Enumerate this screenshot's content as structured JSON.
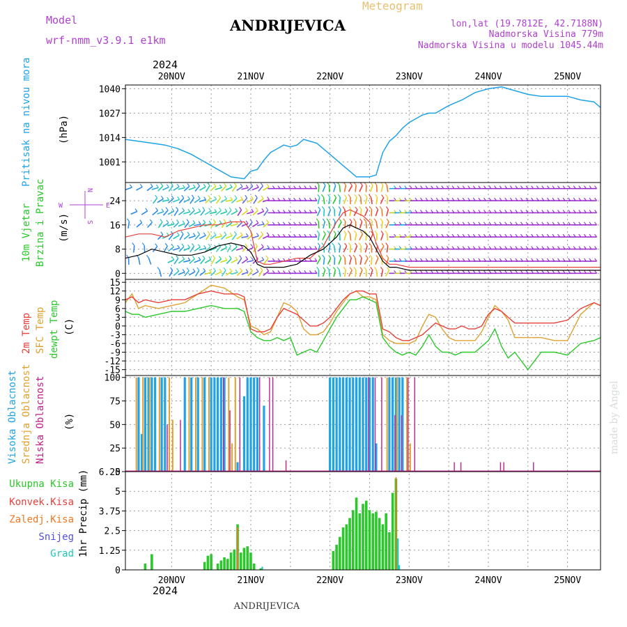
{
  "header": {
    "model_label": "Model",
    "model_name": "wrf-nmm_v3.9.1 e1km",
    "title": "ANDRIJEVICA",
    "meteogram_label": "Meteogram",
    "lonlat": "lon,lat (19.7812E, 42.7188N)",
    "elevation": "Nadmorska Visina 779m",
    "model_elevation": "Nadmorska Visina u modelu 1045.44m",
    "footer_title": "ANDRIJEVICA",
    "watermark": "made by Angel",
    "year": "2024"
  },
  "colors": {
    "pressure": "#1fa3e8",
    "temp2m": "#e8403a",
    "sfctemp": "#e0a030",
    "dewpoint": "#2ac82a",
    "high_cloud": "#1fa3e8",
    "mid_cloud": "#e0a030",
    "low_cloud": "#c0208a",
    "total_precip": "#2ac82a",
    "conv_precip": "#e8403a",
    "frozen_precip": "#f07820",
    "snow": "#5050e0",
    "hail": "#20c8b8",
    "title_purple": "#b040d0"
  },
  "panels": {
    "pressure": {
      "label_line1": "Pritisak na nivou mora",
      "unit": "(hPa)"
    },
    "wind": {
      "label_line1": "10m Vjetar",
      "label_line2": "Brzina i Pravac",
      "unit": "(m/s)",
      "compass_w": "W",
      "compass_e": "E",
      "compass_n": "N",
      "compass_s": "S"
    },
    "temp": {
      "label_line1": "2m Temp",
      "label_line2": "SFC Temp",
      "label_line3": "dewpt Temp",
      "unit": "(C)"
    },
    "cloud": {
      "label_line1": "Visoka Oblacnost",
      "label_line2": "Srednja Oblacnost",
      "label_line3": "Niska Oblacnost",
      "unit": "(%)"
    },
    "precip": {
      "legend": [
        "Ukupna Kisa",
        "Konvek.Kisa",
        "Zaledj.Kisa",
        "Snijeg",
        "Grad"
      ],
      "unit": "1hr Precip (mm)"
    }
  },
  "chart_data": {
    "type": "line",
    "x_day_labels": [
      "20NOV",
      "21NOV",
      "22NOV",
      "23NOV",
      "24NOV",
      "25NOV"
    ],
    "x_range_hours": [
      -14,
      130
    ],
    "pressure": {
      "yticks": [
        "1001",
        "1014",
        "1027",
        "1040"
      ],
      "ylim": [
        990,
        1042
      ],
      "x": [
        -14,
        -10,
        -6,
        -2,
        2,
        6,
        10,
        14,
        18,
        22,
        24,
        26,
        28,
        30,
        32,
        34,
        36,
        38,
        40,
        44,
        48,
        52,
        54,
        56,
        58,
        60,
        62,
        64,
        66,
        68,
        70,
        72,
        74,
        76,
        78,
        80,
        84,
        88,
        92,
        96,
        100,
        104,
        108,
        112,
        116,
        120,
        124,
        128,
        130
      ],
      "values": [
        1013,
        1012,
        1011,
        1010,
        1008,
        1005,
        1001,
        997,
        993,
        992,
        996,
        997,
        1002,
        1006,
        1008,
        1010,
        1009,
        1010,
        1013,
        1011,
        1005,
        999,
        996,
        993,
        993,
        993,
        994,
        1006,
        1012,
        1015,
        1019,
        1022,
        1024,
        1026,
        1027,
        1027,
        1031,
        1034,
        1038,
        1040,
        1041,
        1039,
        1037,
        1036,
        1036,
        1036,
        1034,
        1033,
        1030
      ]
    },
    "wind": {
      "yticks": [
        "0",
        "8",
        "16",
        "24"
      ],
      "ylim": [
        -2,
        30
      ],
      "x": [
        -14,
        -10,
        -6,
        -2,
        2,
        6,
        10,
        14,
        18,
        22,
        24,
        26,
        28,
        30,
        34,
        38,
        42,
        46,
        50,
        52,
        54,
        56,
        58,
        60,
        62,
        64,
        66,
        68,
        72,
        76,
        80,
        84,
        88,
        92,
        96,
        100,
        104,
        108,
        112,
        116,
        120,
        124,
        128,
        130
      ],
      "speed": [
        5,
        6,
        8,
        7,
        6,
        6,
        7,
        9,
        10,
        9,
        7,
        3,
        2,
        2,
        2,
        3,
        6,
        8,
        12,
        15,
        16,
        15,
        14,
        12,
        8,
        4,
        2,
        2,
        1,
        1,
        1,
        1,
        1,
        1,
        1,
        1,
        1,
        1,
        1,
        1,
        1,
        1,
        1,
        1
      ],
      "gust": [
        12,
        13,
        13,
        12,
        14,
        15,
        16,
        16,
        17,
        17,
        14,
        4,
        3,
        3,
        4,
        5,
        5,
        9,
        17,
        20,
        21,
        20,
        19,
        17,
        10,
        5,
        3,
        3,
        2,
        2,
        2,
        2,
        2,
        2,
        2,
        2,
        2,
        2,
        2,
        2,
        2,
        2,
        2,
        2
      ]
    },
    "temperature": {
      "yticks": [
        "-15",
        "-12",
        "-9",
        "-6",
        "-3",
        "0",
        "3",
        "6",
        "9",
        "12",
        "15"
      ],
      "ylim": [
        -17,
        16
      ],
      "x": [
        -14,
        -12,
        -10,
        -8,
        -4,
        0,
        4,
        8,
        12,
        16,
        20,
        22,
        24,
        26,
        28,
        30,
        32,
        34,
        36,
        38,
        40,
        42,
        44,
        46,
        48,
        50,
        52,
        54,
        56,
        58,
        60,
        62,
        64,
        66,
        68,
        70,
        72,
        74,
        76,
        78,
        80,
        82,
        84,
        86,
        88,
        90,
        92,
        94,
        96,
        98,
        100,
        102,
        104,
        108,
        112,
        116,
        120,
        124,
        128,
        130
      ],
      "t2m": [
        9,
        10,
        8,
        9,
        8,
        9,
        9,
        11,
        12,
        11,
        11,
        10,
        -1,
        -2,
        -2,
        -1,
        3,
        6,
        5,
        4,
        2,
        0,
        0,
        1,
        3,
        6,
        9,
        11,
        12,
        12,
        11,
        11,
        -1,
        -2,
        -4,
        -5,
        -5,
        -4,
        -3,
        -1,
        1,
        0,
        -1,
        -1,
        0,
        -1,
        -1,
        0,
        4,
        6,
        5,
        3,
        1,
        1,
        1,
        1,
        2,
        6,
        8,
        7
      ],
      "sfc": [
        8,
        11,
        6,
        7,
        6,
        7,
        8,
        11,
        14,
        13,
        10,
        9,
        0,
        -1,
        -3,
        -2,
        3,
        8,
        7,
        5,
        -1,
        -3,
        -3,
        -2,
        1,
        5,
        8,
        11,
        12,
        10,
        10,
        9,
        -3,
        -5,
        -6,
        -6,
        -6,
        -5,
        0,
        4,
        3,
        -1,
        -4,
        -5,
        -5,
        -5,
        -5,
        -2,
        3,
        7,
        5,
        2,
        -4,
        -4,
        -4,
        -5,
        -5,
        4,
        8,
        7
      ],
      "dewpt": [
        5,
        4,
        4,
        3,
        4,
        5,
        5,
        6,
        7,
        6,
        6,
        5,
        -2,
        -4,
        -5,
        -5,
        -4,
        -5,
        -4,
        -10,
        -9,
        -8,
        -9,
        -5,
        -1,
        3,
        6,
        9,
        9,
        10,
        9,
        8,
        -4,
        -7,
        -9,
        -10,
        -9,
        -10,
        -7,
        -3,
        -7,
        -9,
        -9,
        -10,
        -9,
        -9,
        -9,
        -7,
        -5,
        -1,
        -7,
        -11,
        -9,
        -15,
        -9,
        -9,
        -10,
        -6,
        -5,
        -4
      ]
    },
    "cloud": {
      "yticks": [
        "0",
        "25",
        "50",
        "75",
        "100"
      ],
      "ylim": [
        0,
        102
      ],
      "high": [
        {
          "x": -10,
          "v": 100
        },
        {
          "x": -9,
          "v": 40
        },
        {
          "x": -8,
          "v": 100
        },
        {
          "x": -7,
          "v": 100
        },
        {
          "x": -6,
          "v": 100
        },
        {
          "x": -5,
          "v": 100
        },
        {
          "x": -3,
          "v": 100
        },
        {
          "x": -2,
          "v": 100
        },
        {
          "x": 4,
          "v": 100
        },
        {
          "x": 6,
          "v": 100
        },
        {
          "x": 8,
          "v": 100
        },
        {
          "x": 10,
          "v": 100
        },
        {
          "x": 12,
          "v": 100
        },
        {
          "x": 13,
          "v": 100
        },
        {
          "x": 14,
          "v": 100
        },
        {
          "x": 15,
          "v": 100
        },
        {
          "x": 16,
          "v": 100
        },
        {
          "x": 20,
          "v": 10
        },
        {
          "x": 22,
          "v": 80
        },
        {
          "x": 23,
          "v": 100
        },
        {
          "x": 24,
          "v": 100
        },
        {
          "x": 25,
          "v": 100
        },
        {
          "x": 26,
          "v": 100
        },
        {
          "x": 28,
          "v": 70
        },
        {
          "x": 48,
          "v": 100
        },
        {
          "x": 49,
          "v": 100
        },
        {
          "x": 50,
          "v": 100
        },
        {
          "x": 51,
          "v": 100
        },
        {
          "x": 52,
          "v": 100
        },
        {
          "x": 53,
          "v": 100
        },
        {
          "x": 54,
          "v": 100
        },
        {
          "x": 55,
          "v": 100
        },
        {
          "x": 56,
          "v": 100
        },
        {
          "x": 57,
          "v": 100
        },
        {
          "x": 58,
          "v": 100
        },
        {
          "x": 59,
          "v": 100
        },
        {
          "x": 60,
          "v": 100
        },
        {
          "x": 61,
          "v": 100
        },
        {
          "x": 62,
          "v": 30
        },
        {
          "x": 66,
          "v": 100
        },
        {
          "x": 67,
          "v": 100
        },
        {
          "x": 68,
          "v": 100
        },
        {
          "x": 69,
          "v": 100
        },
        {
          "x": 70,
          "v": 100
        }
      ],
      "mid": [
        {
          "x": -11,
          "v": 100
        },
        {
          "x": -9,
          "v": 100
        },
        {
          "x": -7,
          "v": 100
        },
        {
          "x": -4,
          "v": 100
        },
        {
          "x": -1,
          "v": 100
        },
        {
          "x": 0,
          "v": 55
        },
        {
          "x": 5,
          "v": 100
        },
        {
          "x": 7,
          "v": 100
        },
        {
          "x": 9,
          "v": 100
        },
        {
          "x": 11,
          "v": 100
        },
        {
          "x": 17,
          "v": 100
        },
        {
          "x": 18,
          "v": 30
        },
        {
          "x": 19,
          "v": 100
        },
        {
          "x": 65,
          "v": 100
        },
        {
          "x": 68,
          "v": 100
        },
        {
          "x": 71,
          "v": 100
        },
        {
          "x": 72,
          "v": 30
        }
      ],
      "low": [
        {
          "x": -1,
          "v": 50
        },
        {
          "x": 3,
          "v": 55
        },
        {
          "x": 16,
          "v": 100
        },
        {
          "x": 18,
          "v": 65
        },
        {
          "x": 21,
          "v": 100
        },
        {
          "x": 27,
          "v": 100
        },
        {
          "x": 30,
          "v": 100
        },
        {
          "x": 31,
          "v": 100
        },
        {
          "x": 35,
          "v": 12
        },
        {
          "x": 60,
          "v": 100
        },
        {
          "x": 62,
          "v": 100
        },
        {
          "x": 64,
          "v": 100
        },
        {
          "x": 68,
          "v": 60
        },
        {
          "x": 70,
          "v": 60
        },
        {
          "x": 72,
          "v": 100
        },
        {
          "x": 74,
          "v": 100
        },
        {
          "x": 86,
          "v": 10
        },
        {
          "x": 88,
          "v": 10
        },
        {
          "x": 100,
          "v": 10
        },
        {
          "x": 101,
          "v": 10
        },
        {
          "x": 110,
          "v": 10
        }
      ]
    },
    "precip": {
      "yticks": [
        "0",
        "1.25",
        "2.5",
        "3.75",
        "5",
        "6.25"
      ],
      "ylim": [
        0,
        6.25
      ],
      "total": [
        {
          "x": -8,
          "v": 0.4
        },
        {
          "x": -6,
          "v": 1.0
        },
        {
          "x": 10,
          "v": 0.5
        },
        {
          "x": 11,
          "v": 0.9
        },
        {
          "x": 12,
          "v": 1.0
        },
        {
          "x": 14,
          "v": 0.4
        },
        {
          "x": 15,
          "v": 0.6
        },
        {
          "x": 16,
          "v": 0.8
        },
        {
          "x": 17,
          "v": 0.7
        },
        {
          "x": 18,
          "v": 1.1
        },
        {
          "x": 19,
          "v": 1.3
        },
        {
          "x": 20,
          "v": 2.9
        },
        {
          "x": 21,
          "v": 1.1
        },
        {
          "x": 22,
          "v": 1.4
        },
        {
          "x": 23,
          "v": 1.5
        },
        {
          "x": 24,
          "v": 1.1
        },
        {
          "x": 25,
          "v": 0.4
        },
        {
          "x": 27,
          "v": 0.1
        },
        {
          "x": 49,
          "v": 1.2
        },
        {
          "x": 50,
          "v": 1.6
        },
        {
          "x": 51,
          "v": 2.1
        },
        {
          "x": 52,
          "v": 2.7
        },
        {
          "x": 53,
          "v": 2.9
        },
        {
          "x": 54,
          "v": 3.3
        },
        {
          "x": 55,
          "v": 3.8
        },
        {
          "x": 56,
          "v": 4.6
        },
        {
          "x": 57,
          "v": 3.6
        },
        {
          "x": 58,
          "v": 4.2
        },
        {
          "x": 59,
          "v": 4.4
        },
        {
          "x": 60,
          "v": 3.8
        },
        {
          "x": 61,
          "v": 3.6
        },
        {
          "x": 62,
          "v": 3.7
        },
        {
          "x": 63,
          "v": 3.3
        },
        {
          "x": 64,
          "v": 2.9
        },
        {
          "x": 65,
          "v": 3.6
        },
        {
          "x": 66,
          "v": 2.4
        },
        {
          "x": 67,
          "v": 4.9
        },
        {
          "x": 68,
          "v": 5.8
        }
      ],
      "frozen": [
        {
          "x": 20,
          "v": 2.7
        },
        {
          "x": 68,
          "v": 5.9
        }
      ],
      "hail": [
        {
          "x": 68.6,
          "v": 2.0
        },
        {
          "x": 69,
          "v": 0.3
        },
        {
          "x": 27.5,
          "v": 0.2
        }
      ]
    }
  }
}
